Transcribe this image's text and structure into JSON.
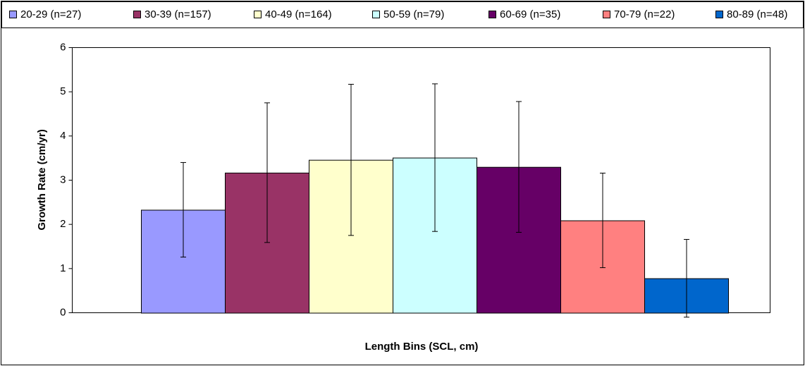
{
  "chart_data": {
    "type": "bar",
    "xlabel": "Length Bins (SCL, cm)",
    "ylabel": "Growth Rate (cm/yr)",
    "ylim": [
      0,
      6
    ],
    "yticks": [
      0,
      1,
      2,
      3,
      4,
      5,
      6
    ],
    "legend": "top",
    "series": [
      {
        "name": "20-29 (n=27)",
        "color": "#9999ff",
        "values": [
          2.33
        ],
        "errors": [
          1.07
        ]
      },
      {
        "name": "30-39 (n=157)",
        "color": "#993366",
        "values": [
          3.17
        ],
        "errors": [
          1.58
        ]
      },
      {
        "name": "40-49 (n=164)",
        "color": "#ffffcc",
        "values": [
          3.46
        ],
        "errors": [
          1.71
        ]
      },
      {
        "name": "50-59 (n=79)",
        "color": "#ccffff",
        "values": [
          3.51
        ],
        "errors": [
          1.67
        ]
      },
      {
        "name": "60-69 (n=35)",
        "color": "#660066",
        "values": [
          3.3
        ],
        "errors": [
          1.48
        ]
      },
      {
        "name": "70-79 (n=22)",
        "color": "#ff8080",
        "values": [
          2.09
        ],
        "errors": [
          1.07
        ]
      },
      {
        "name": "80-89 (n=48)",
        "color": "#0066cc",
        "values": [
          0.78
        ],
        "errors": [
          0.88
        ]
      }
    ]
  }
}
